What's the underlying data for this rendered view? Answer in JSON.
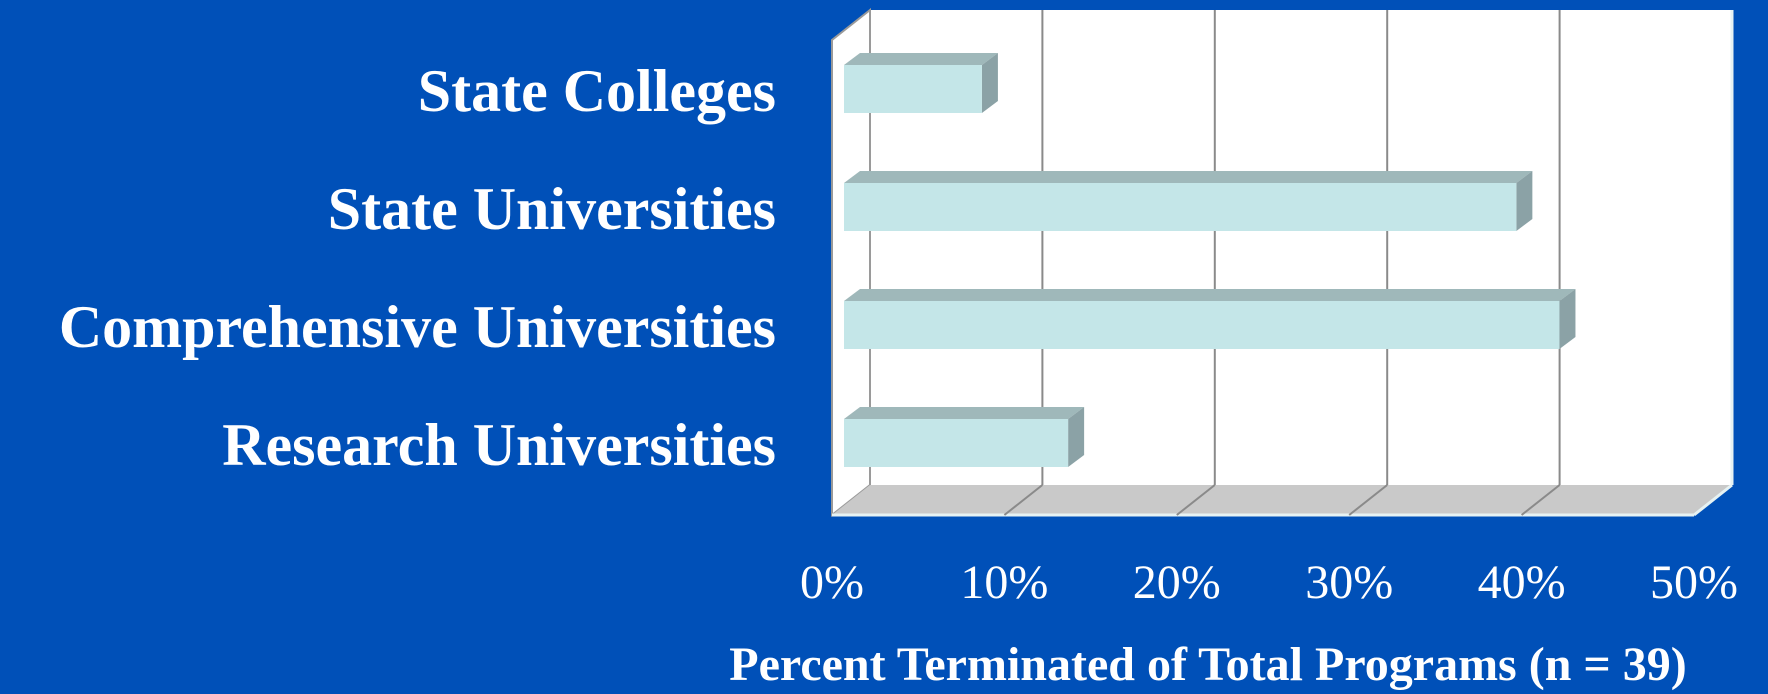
{
  "chart_data": {
    "type": "bar",
    "orientation": "horizontal",
    "style": "3d",
    "categories": [
      "State Colleges",
      "State Universities",
      "Comprehensive Universities",
      "Research Universities"
    ],
    "values": [
      8,
      39,
      41.5,
      13
    ],
    "value_unit": "%",
    "xlabel": "Percent Terminated of Total Programs (n = 39)",
    "ylabel": "",
    "xlim": [
      0,
      50
    ],
    "x_ticks": [
      "0%",
      "10%",
      "20%",
      "30%",
      "40%",
      "50%"
    ],
    "grid": true,
    "legend": "none",
    "colors": {
      "background": "#0050b8",
      "plot_area": "#ffffff",
      "bar_front": "#c4e6e8",
      "bar_top": "#9fb8ba",
      "bar_side": "#8ba2a6",
      "floor": "#c9c9c9",
      "gridline": "#8a8a8a",
      "text": "#ffffff"
    }
  }
}
